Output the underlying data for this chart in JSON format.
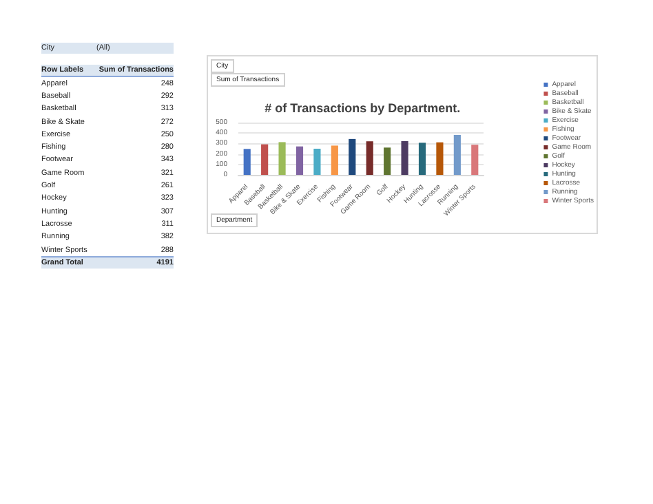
{
  "chart_data": [
    {
      "type": "other",
      "annotations": [
        "City",
        "(All)",
        "Row Labels",
        "Sum of Transactions",
        "Apparel",
        "248",
        "Baseball",
        "292",
        "Basketball",
        "313",
        "Bike & Skate",
        "272",
        "Exercise",
        "250",
        "Fishing",
        "280",
        "Footwear",
        "343",
        "Game Room",
        "321",
        "Golf",
        "261",
        "Hockey",
        "323",
        "Hunting",
        "307",
        "Lacrosse",
        "311",
        "Running",
        "382",
        "Winter Sports",
        "288",
        "Grand Total",
        "4191"
      ]
    },
    {
      "type": "bar",
      "title": "# of Transactions by Department.",
      "categories": [
        "Apparel",
        "Baseball",
        "Basketball",
        "Bike & Skate",
        "Exercise",
        "Fishing",
        "Footwear",
        "Game Room",
        "Golf",
        "Hockey",
        "Hunting",
        "Lacrosse",
        "Running",
        "Winter Sports"
      ],
      "stacked": true,
      "series": [
        {
          "name": "Apparel",
          "color": "#4472c4",
          "values": [
            248,
            null,
            null,
            null,
            null,
            null,
            null,
            null,
            null,
            null,
            null,
            null,
            null,
            null
          ]
        },
        {
          "name": "Baseball",
          "color": "#c0504d",
          "values": [
            null,
            292,
            null,
            null,
            null,
            null,
            null,
            null,
            null,
            null,
            null,
            null,
            null,
            null
          ]
        },
        {
          "name": "Basketball",
          "color": "#9bbb59",
          "values": [
            null,
            null,
            313,
            null,
            null,
            null,
            null,
            null,
            null,
            null,
            null,
            null,
            null,
            null
          ]
        },
        {
          "name": "Bike & Skate",
          "color": "#8064a2",
          "values": [
            null,
            null,
            null,
            272,
            null,
            null,
            null,
            null,
            null,
            null,
            null,
            null,
            null,
            null
          ]
        },
        {
          "name": "Exercise",
          "color": "#4bacc6",
          "values": [
            null,
            null,
            null,
            null,
            250,
            null,
            null,
            null,
            null,
            null,
            null,
            null,
            null,
            null
          ]
        },
        {
          "name": "Fishing",
          "color": "#f79646",
          "values": [
            null,
            null,
            null,
            null,
            null,
            280,
            null,
            null,
            null,
            null,
            null,
            null,
            null,
            null
          ]
        },
        {
          "name": "Footwear",
          "color": "#1f497d",
          "values": [
            null,
            null,
            null,
            null,
            null,
            null,
            343,
            null,
            null,
            null,
            null,
            null,
            null,
            null
          ]
        },
        {
          "name": "Game Room",
          "color": "#772c2a",
          "values": [
            null,
            null,
            null,
            null,
            null,
            null,
            null,
            321,
            null,
            null,
            null,
            null,
            null,
            null
          ]
        },
        {
          "name": "Golf",
          "color": "#5f7530",
          "values": [
            null,
            null,
            null,
            null,
            null,
            null,
            null,
            null,
            261,
            null,
            null,
            null,
            null,
            null
          ]
        },
        {
          "name": "Hockey",
          "color": "#4d3b62",
          "values": [
            null,
            null,
            null,
            null,
            null,
            null,
            null,
            null,
            null,
            323,
            null,
            null,
            null,
            null
          ]
        },
        {
          "name": "Hunting",
          "color": "#276a7c",
          "values": [
            null,
            null,
            null,
            null,
            null,
            null,
            null,
            null,
            null,
            null,
            307,
            null,
            null,
            null
          ]
        },
        {
          "name": "Lacrosse",
          "color": "#b65708",
          "values": [
            null,
            null,
            null,
            null,
            null,
            null,
            null,
            null,
            null,
            null,
            null,
            311,
            null,
            null
          ]
        },
        {
          "name": "Running",
          "color": "#729aca",
          "values": [
            null,
            null,
            null,
            null,
            null,
            null,
            null,
            null,
            null,
            null,
            null,
            null,
            382,
            null
          ]
        },
        {
          "name": "Winter Sports",
          "color": "#d9777a",
          "values": [
            null,
            null,
            null,
            null,
            null,
            null,
            null,
            null,
            null,
            null,
            null,
            null,
            null,
            288
          ]
        }
      ],
      "ylim": [
        0,
        500
      ],
      "yticks": [
        0,
        100,
        200,
        300,
        400,
        500
      ],
      "grid": "y",
      "legend": "right",
      "annotations": [
        "City",
        "Sum of Transactions",
        "Department"
      ]
    }
  ]
}
